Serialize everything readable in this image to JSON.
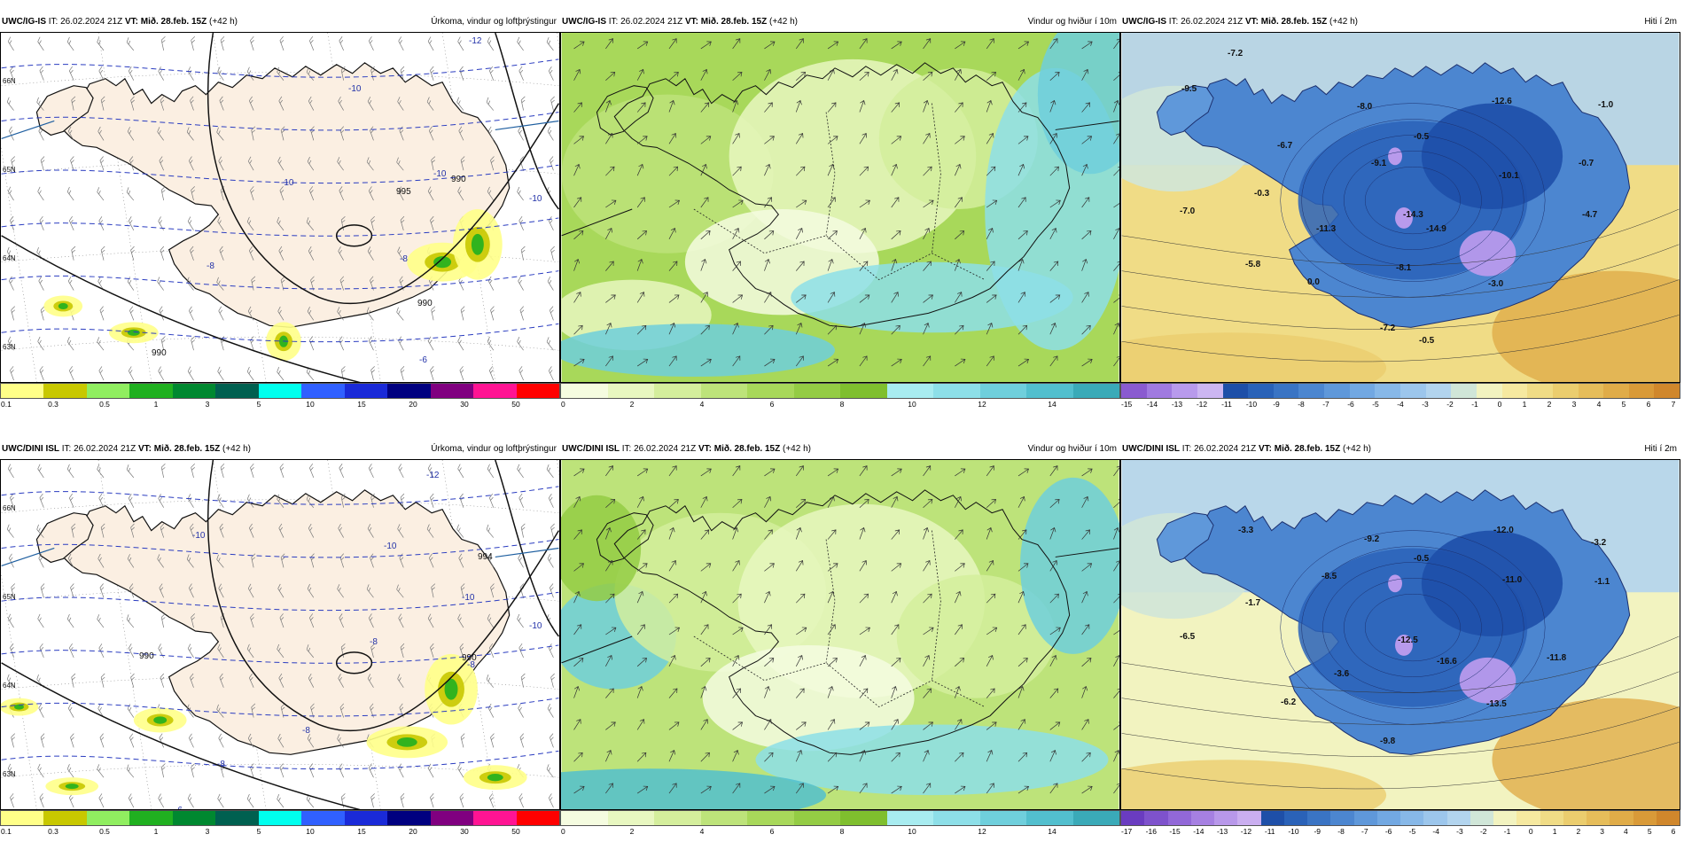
{
  "panels": [
    {
      "model": "UWC/IG-IS",
      "it": "IT: 26.02.2024 21Z",
      "vt_prefix": "VT:",
      "vt": "Mið. 28.feb. 15Z",
      "lead": "(+42 h)",
      "title": "Úrkoma, vindur og loftþrýstingur"
    },
    {
      "model": "UWC/IG-IS",
      "it": "IT: 26.02.2024 21Z",
      "vt_prefix": "VT:",
      "vt": "Mið. 28.feb. 15Z",
      "lead": "(+42 h)",
      "title": "Vindur og hviður í 10m"
    },
    {
      "model": "UWC/IG-IS",
      "it": "IT: 26.02.2024 21Z",
      "vt_prefix": "VT:",
      "vt": "Mið. 28.feb. 15Z",
      "lead": "(+42 h)",
      "title": "Hiti í 2m"
    },
    {
      "model": "UWC/DINI ISL",
      "it": "IT: 26.02.2024 21Z",
      "vt_prefix": "VT:",
      "vt": "Mið. 28.feb. 15Z",
      "lead": "(+42 h)",
      "title": "Úrkoma, vindur og loftþrýstingur"
    },
    {
      "model": "UWC/DINI ISL",
      "it": "IT: 26.02.2024 21Z",
      "vt_prefix": "VT:",
      "vt": "Mið. 28.feb. 15Z",
      "lead": "(+42 h)",
      "title": "Vindur og hviður í 10m"
    },
    {
      "model": "UWC/DINI ISL",
      "it": "IT: 26.02.2024 21Z",
      "vt_prefix": "VT:",
      "vt": "Mið. 28.feb. 15Z",
      "lead": "(+42 h)",
      "title": "Hiti í 2m"
    }
  ],
  "colorbars": {
    "precip": {
      "colors": [
        "#ffff88",
        "#c8c800",
        "#90ee60",
        "#20b020",
        "#008830",
        "#006050",
        "#00ffee",
        "#3060ff",
        "#1a2ad8",
        "#000080",
        "#800080",
        "#ff1493",
        "#ff0000"
      ],
      "labels": [
        "0.1",
        "0.3",
        "0.5",
        "1",
        "3",
        "5",
        "10",
        "15",
        "20",
        "30",
        "50"
      ]
    },
    "wind": {
      "colors": [
        "#f5fce0",
        "#e8f7c0",
        "#d4ee9c",
        "#bde37a",
        "#a8d85a",
        "#94cc44",
        "#7fbf2e",
        "#a8ecf0",
        "#8ddfe8",
        "#6fcfdc",
        "#52bfce",
        "#3aaab8"
      ],
      "labels": [
        "0",
        "2",
        "4",
        "6",
        "8",
        "10",
        "12",
        "14"
      ]
    },
    "temp_top": {
      "colors": [
        "#8a5bd0",
        "#a07ae0",
        "#b89aec",
        "#ccb6f2",
        "#1e4fa8",
        "#2a62b8",
        "#3a74c4",
        "#4c86d0",
        "#5f98da",
        "#72a8e2",
        "#87b8e8",
        "#9cc6ec",
        "#b2d4ee",
        "#d0e6d8",
        "#f2f3c0",
        "#f6e9a0",
        "#f0dc86",
        "#ebcd6e",
        "#e6bd5a",
        "#e0ac48",
        "#d99a38",
        "#d0872c"
      ],
      "labels": [
        "-15",
        "-14",
        "-13",
        "-12",
        "-11",
        "-10",
        "-9",
        "-8",
        "-7",
        "-6",
        "-5",
        "-4",
        "-3",
        "-2",
        "-1",
        "0",
        "1",
        "2",
        "3",
        "4",
        "5",
        "6",
        "7"
      ]
    },
    "temp_bot": {
      "colors": [
        "#6a3cc0",
        "#7e52cc",
        "#9268d8",
        "#a680e2",
        "#b898ea",
        "#caaef0",
        "#1e4fa8",
        "#2a62b8",
        "#3a74c4",
        "#4c86d0",
        "#5f98da",
        "#72a8e2",
        "#87b8e8",
        "#9cc6ec",
        "#b2d4ee",
        "#d0e6d8",
        "#f2f3c0",
        "#f6e9a0",
        "#f0dc86",
        "#ebcd6e",
        "#e6bd5a",
        "#e0ac48",
        "#d99a38",
        "#d0872c"
      ],
      "labels": [
        "-17",
        "-16",
        "-15",
        "-14",
        "-13",
        "-12",
        "-11",
        "-10",
        "-9",
        "-8",
        "-7",
        "-6",
        "-5",
        "-4",
        "-3",
        "-2",
        "-1",
        "0",
        "1",
        "2",
        "3",
        "4",
        "5",
        "6"
      ]
    }
  },
  "map_labels": {
    "lat_top": [
      "66N",
      "65N",
      "64N",
      "63N"
    ],
    "precip_top": [
      "-12",
      "-10",
      "-10",
      "-10",
      "-10",
      "-8",
      "-8",
      "-6",
      "990",
      "995",
      "990",
      "990"
    ],
    "precip_bot": [
      "-12",
      "-10",
      "-10",
      "-10",
      "-8",
      "-8",
      "-8",
      "-8",
      "-10",
      "-6",
      "990",
      "994",
      "990"
    ],
    "temp_top": [
      "-7.2",
      "-9.5",
      "-8.0",
      "-12.6",
      "-1.0",
      "-6.7",
      "-0.5",
      "-9.1",
      "-0.7",
      "-10.1",
      "-0.3",
      "-7.0",
      "-14.3",
      "-14.9",
      "-4.7",
      "-11.3",
      "-5.8",
      "-8.1",
      "0.0",
      "-3.0",
      "-7.2",
      "-0.5"
    ],
    "temp_bot": [
      "-3.3",
      "-9.2",
      "-12.0",
      "-3.2",
      "-0.5",
      "-8.5",
      "-11.0",
      "-1.1",
      "-1.7",
      "-6.5",
      "-12.5",
      "-16.6",
      "-11.8",
      "-3.6",
      "-6.2",
      "-13.5",
      "-9.8"
    ]
  },
  "colors": {
    "land": "#fbefe2",
    "sea": "#ffffff",
    "isobar": "#111111",
    "isotherm_850": "#2a3cc0"
  }
}
